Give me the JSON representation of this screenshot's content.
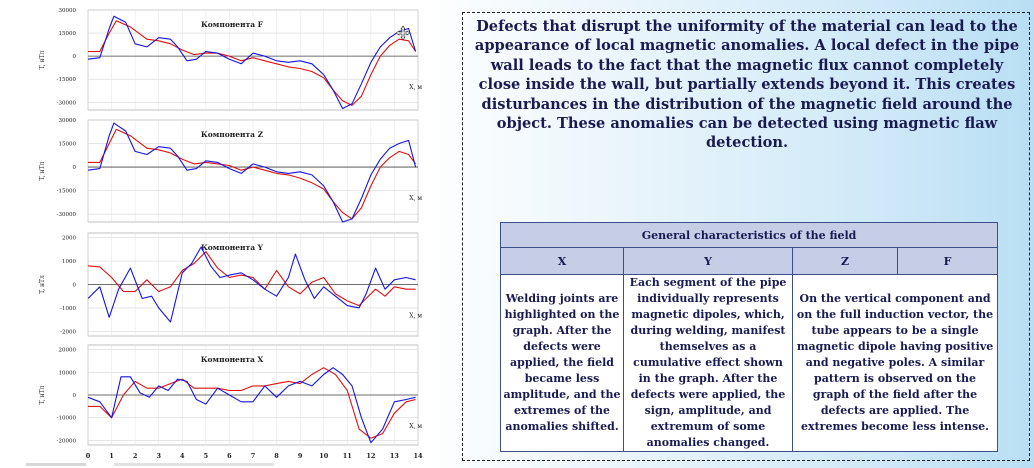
{
  "paragraph": "Defects that disrupt the uniformity of the material can lead to the appearance of local magnetic anomalies. A local defect in the pipe wall leads to the fact that the magnetic flux cannot completely close inside the wall, but partially extends beyond it. This creates disturbances in the distribution of the magnetic field around the object. These anomalies can be detected using magnetic flaw detection.",
  "table": {
    "title": "General characteristics of the field",
    "headers": [
      "X",
      "Y",
      "Z",
      "F"
    ],
    "cells": [
      "Welding joints are highlighted on the graph.  After the defects were applied, the field became less amplitude, and the extremes of the anomalies shifted.",
      "Each segment of the pipe individually represents magnetic dipoles, which, during welding, manifest themselves as a cumulative effect shown in the graph. After the defects were applied, the sign, amplitude, and extremum of some anomalies changed.",
      "On the vertical component and on the full induction vector, the tube appears to be a single magnetic dipole having positive and negative poles. A similar pattern is observed on the graph of the field after the defects are applied. The extremes become less intense."
    ]
  },
  "chart_data": [
    {
      "type": "line",
      "title": "Компонента F",
      "xlabel": "X, м",
      "ylabel": "T, нТл",
      "ylim": [
        -35000,
        30000
      ],
      "yticks": [
        30000,
        15000,
        0,
        -15000,
        -30000
      ],
      "series": [
        {
          "color": "#e01010",
          "x": [
            0,
            0.5,
            0.9,
            1.2,
            1.8,
            2.5,
            3.0,
            3.5,
            4.0,
            4.5,
            5.0,
            5.5,
            6.0,
            6.5,
            7.0,
            7.5,
            8.0,
            8.5,
            9.0,
            9.5,
            10.0,
            10.4,
            10.8,
            11.2,
            11.6,
            12.0,
            12.4,
            12.8,
            13.2,
            13.6,
            13.9
          ],
          "y": [
            3000,
            3000,
            15000,
            23000,
            19000,
            11000,
            10000,
            8000,
            4000,
            1000,
            2000,
            2000,
            0,
            -3000,
            -1000,
            -3000,
            -5000,
            -7000,
            -8000,
            -10000,
            -14000,
            -22000,
            -29000,
            -32000,
            -26000,
            -12000,
            0,
            7000,
            11000,
            10000,
            3000
          ]
        },
        {
          "color": "#1515e0",
          "x": [
            0,
            0.5,
            0.9,
            1.1,
            1.6,
            2.0,
            2.5,
            3.0,
            3.5,
            3.8,
            4.2,
            4.6,
            5.0,
            5.5,
            6.0,
            6.5,
            7.0,
            7.5,
            8.0,
            8.5,
            9.0,
            9.5,
            10.0,
            10.4,
            10.8,
            11.2,
            11.6,
            12.0,
            12.4,
            12.8,
            13.2,
            13.6,
            13.9
          ],
          "y": [
            -2000,
            -1000,
            18000,
            26000,
            22000,
            8000,
            6000,
            12000,
            11000,
            6000,
            -3000,
            -2000,
            3000,
            2000,
            -2000,
            -5000,
            2000,
            0,
            -3000,
            -4000,
            -3000,
            -5000,
            -12000,
            -22000,
            -34000,
            -31000,
            -18000,
            -4000,
            6000,
            12000,
            16000,
            18000,
            3000
          ]
        }
      ]
    },
    {
      "type": "line",
      "title": "Компонента Z",
      "xlabel": "X, м",
      "ylabel": "T, нТл",
      "ylim": [
        -35000,
        30000
      ],
      "yticks": [
        30000,
        15000,
        0,
        -15000,
        -30000
      ],
      "series": [
        {
          "color": "#e01010",
          "x": [
            0,
            0.5,
            0.9,
            1.2,
            1.8,
            2.5,
            3.0,
            3.5,
            4.0,
            4.5,
            5.0,
            5.5,
            6.0,
            6.5,
            7.0,
            7.5,
            8.0,
            8.5,
            9.0,
            9.5,
            10.0,
            10.4,
            10.8,
            11.2,
            11.6,
            12.0,
            12.4,
            12.8,
            13.2,
            13.6,
            13.9
          ],
          "y": [
            3000,
            3000,
            15000,
            24000,
            20000,
            12000,
            11000,
            9000,
            5000,
            2000,
            3000,
            2000,
            1000,
            -2000,
            0,
            -2000,
            -4000,
            -5000,
            -7000,
            -10000,
            -14000,
            -22000,
            -29000,
            -33000,
            -26000,
            -12000,
            0,
            6000,
            10000,
            8000,
            2000
          ]
        },
        {
          "color": "#1515e0",
          "x": [
            0,
            0.5,
            0.9,
            1.1,
            1.6,
            2.0,
            2.5,
            3.0,
            3.5,
            3.8,
            4.2,
            4.6,
            5.0,
            5.5,
            6.0,
            6.5,
            7.0,
            7.5,
            8.0,
            8.5,
            9.0,
            9.5,
            10.0,
            10.4,
            10.8,
            11.2,
            11.6,
            12.0,
            12.4,
            12.8,
            13.2,
            13.6,
            13.9
          ],
          "y": [
            -2000,
            -1000,
            20000,
            28000,
            23000,
            10000,
            8000,
            13000,
            12000,
            7000,
            -2000,
            -1000,
            4000,
            3000,
            -1000,
            -4000,
            2000,
            0,
            -3000,
            -4000,
            -3000,
            -5000,
            -12000,
            -22000,
            -35000,
            -33000,
            -20000,
            -5000,
            5000,
            12000,
            15000,
            17000,
            0
          ]
        }
      ]
    },
    {
      "type": "line",
      "title": "Компонента Y",
      "xlabel": "X, м",
      "ylabel": "T, нТл",
      "ylim": [
        -2200,
        2200
      ],
      "yticks": [
        2000,
        1000,
        0,
        -1000,
        -2000
      ],
      "series": [
        {
          "color": "#e01010",
          "x": [
            0,
            0.5,
            1.0,
            1.5,
            2.0,
            2.5,
            3.0,
            3.5,
            4.0,
            4.5,
            5.0,
            5.5,
            6.0,
            6.5,
            7.0,
            7.5,
            8.0,
            8.5,
            9.0,
            9.5,
            10.0,
            10.5,
            11.0,
            11.5,
            11.8,
            12.2,
            12.6,
            13.0,
            13.5,
            13.9
          ],
          "y": [
            800,
            750,
            300,
            -300,
            -300,
            200,
            -300,
            -100,
            600,
            900,
            1400,
            700,
            300,
            400,
            300,
            -200,
            600,
            -100,
            -400,
            100,
            300,
            -400,
            -700,
            -900,
            -600,
            -200,
            -500,
            -100,
            -200,
            -200
          ]
        },
        {
          "color": "#1515e0",
          "x": [
            0,
            0.5,
            0.9,
            1.3,
            1.8,
            2.3,
            2.7,
            3.0,
            3.5,
            4.0,
            4.4,
            4.8,
            5.2,
            5.6,
            6.0,
            6.5,
            7.0,
            7.5,
            8.0,
            8.5,
            8.8,
            9.2,
            9.6,
            10.0,
            10.5,
            11.0,
            11.5,
            11.8,
            12.2,
            12.6,
            13.0,
            13.5,
            13.9
          ],
          "y": [
            -600,
            -100,
            -1400,
            -200,
            700,
            -600,
            -500,
            -1000,
            -1600,
            500,
            900,
            1600,
            800,
            300,
            400,
            500,
            200,
            -200,
            -500,
            300,
            1300,
            200,
            -600,
            -100,
            -500,
            -900,
            -1000,
            -400,
            700,
            -200,
            200,
            300,
            200
          ]
        }
      ]
    },
    {
      "type": "line",
      "title": "Компонента X",
      "xlabel": "X, м",
      "ylabel": "T, нТл",
      "ylim": [
        -22000,
        22000
      ],
      "yticks": [
        20000,
        10000,
        0,
        -10000,
        -20000
      ],
      "series": [
        {
          "color": "#e01010",
          "x": [
            0,
            0.5,
            1.0,
            1.5,
            2.0,
            2.5,
            3.0,
            3.5,
            4.0,
            4.5,
            5.0,
            5.5,
            6.0,
            6.5,
            7.0,
            7.5,
            8.0,
            8.5,
            9.0,
            9.5,
            10.0,
            10.5,
            11.0,
            11.5,
            12.0,
            12.5,
            13.0,
            13.5,
            13.9
          ],
          "y": [
            -5000,
            -5000,
            -10000,
            0,
            6000,
            3000,
            3000,
            5000,
            7000,
            3000,
            3000,
            3000,
            2000,
            2000,
            4000,
            4000,
            5000,
            6000,
            5000,
            9000,
            12000,
            9000,
            2000,
            -15000,
            -19000,
            -17000,
            -8000,
            -3000,
            -2000
          ]
        },
        {
          "color": "#1515e0",
          "x": [
            0,
            0.5,
            1.0,
            1.4,
            1.8,
            2.2,
            2.6,
            3.0,
            3.4,
            3.8,
            4.2,
            4.6,
            5.0,
            5.5,
            6.0,
            6.5,
            7.0,
            7.5,
            8.0,
            8.5,
            9.0,
            9.5,
            10.0,
            10.4,
            10.8,
            11.2,
            11.6,
            12.0,
            12.5,
            13.0,
            13.5,
            13.9
          ],
          "y": [
            -1000,
            -3000,
            -10000,
            8000,
            8000,
            1000,
            -1000,
            4000,
            2000,
            7000,
            6000,
            -2000,
            -4000,
            3000,
            0,
            -3000,
            -3000,
            4000,
            -1000,
            4000,
            6000,
            4000,
            9000,
            12000,
            9000,
            4000,
            -10000,
            -21000,
            -15000,
            -3000,
            -2000,
            -1000
          ]
        }
      ]
    }
  ]
}
